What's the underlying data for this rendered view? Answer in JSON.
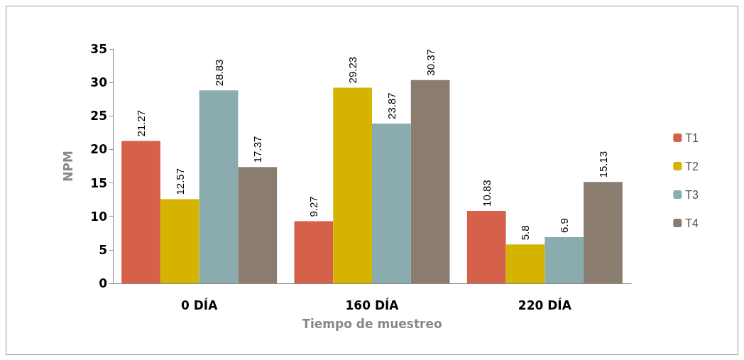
{
  "chart_data": {
    "type": "bar",
    "xlabel": "Tiempo de muestreo",
    "ylabel": "NPM",
    "categories": [
      "0 DÍA",
      "160 DÍA",
      "220 DÍA"
    ],
    "series": [
      {
        "name": "T1",
        "color": "#d5614a",
        "values": [
          21.27,
          9.27,
          10.83
        ]
      },
      {
        "name": "T2",
        "color": "#d4b400",
        "values": [
          12.57,
          29.23,
          5.8
        ]
      },
      {
        "name": "T3",
        "color": "#8aacae",
        "values": [
          28.83,
          23.87,
          6.9
        ]
      },
      {
        "name": "T4",
        "color": "#8b7c70",
        "values": [
          17.37,
          30.37,
          15.13
        ]
      }
    ],
    "ylim": [
      0,
      35
    ],
    "yticks": [
      0,
      5,
      10,
      15,
      20,
      25,
      30,
      35
    ],
    "grid": false,
    "legend": "right",
    "data_labels": true
  }
}
